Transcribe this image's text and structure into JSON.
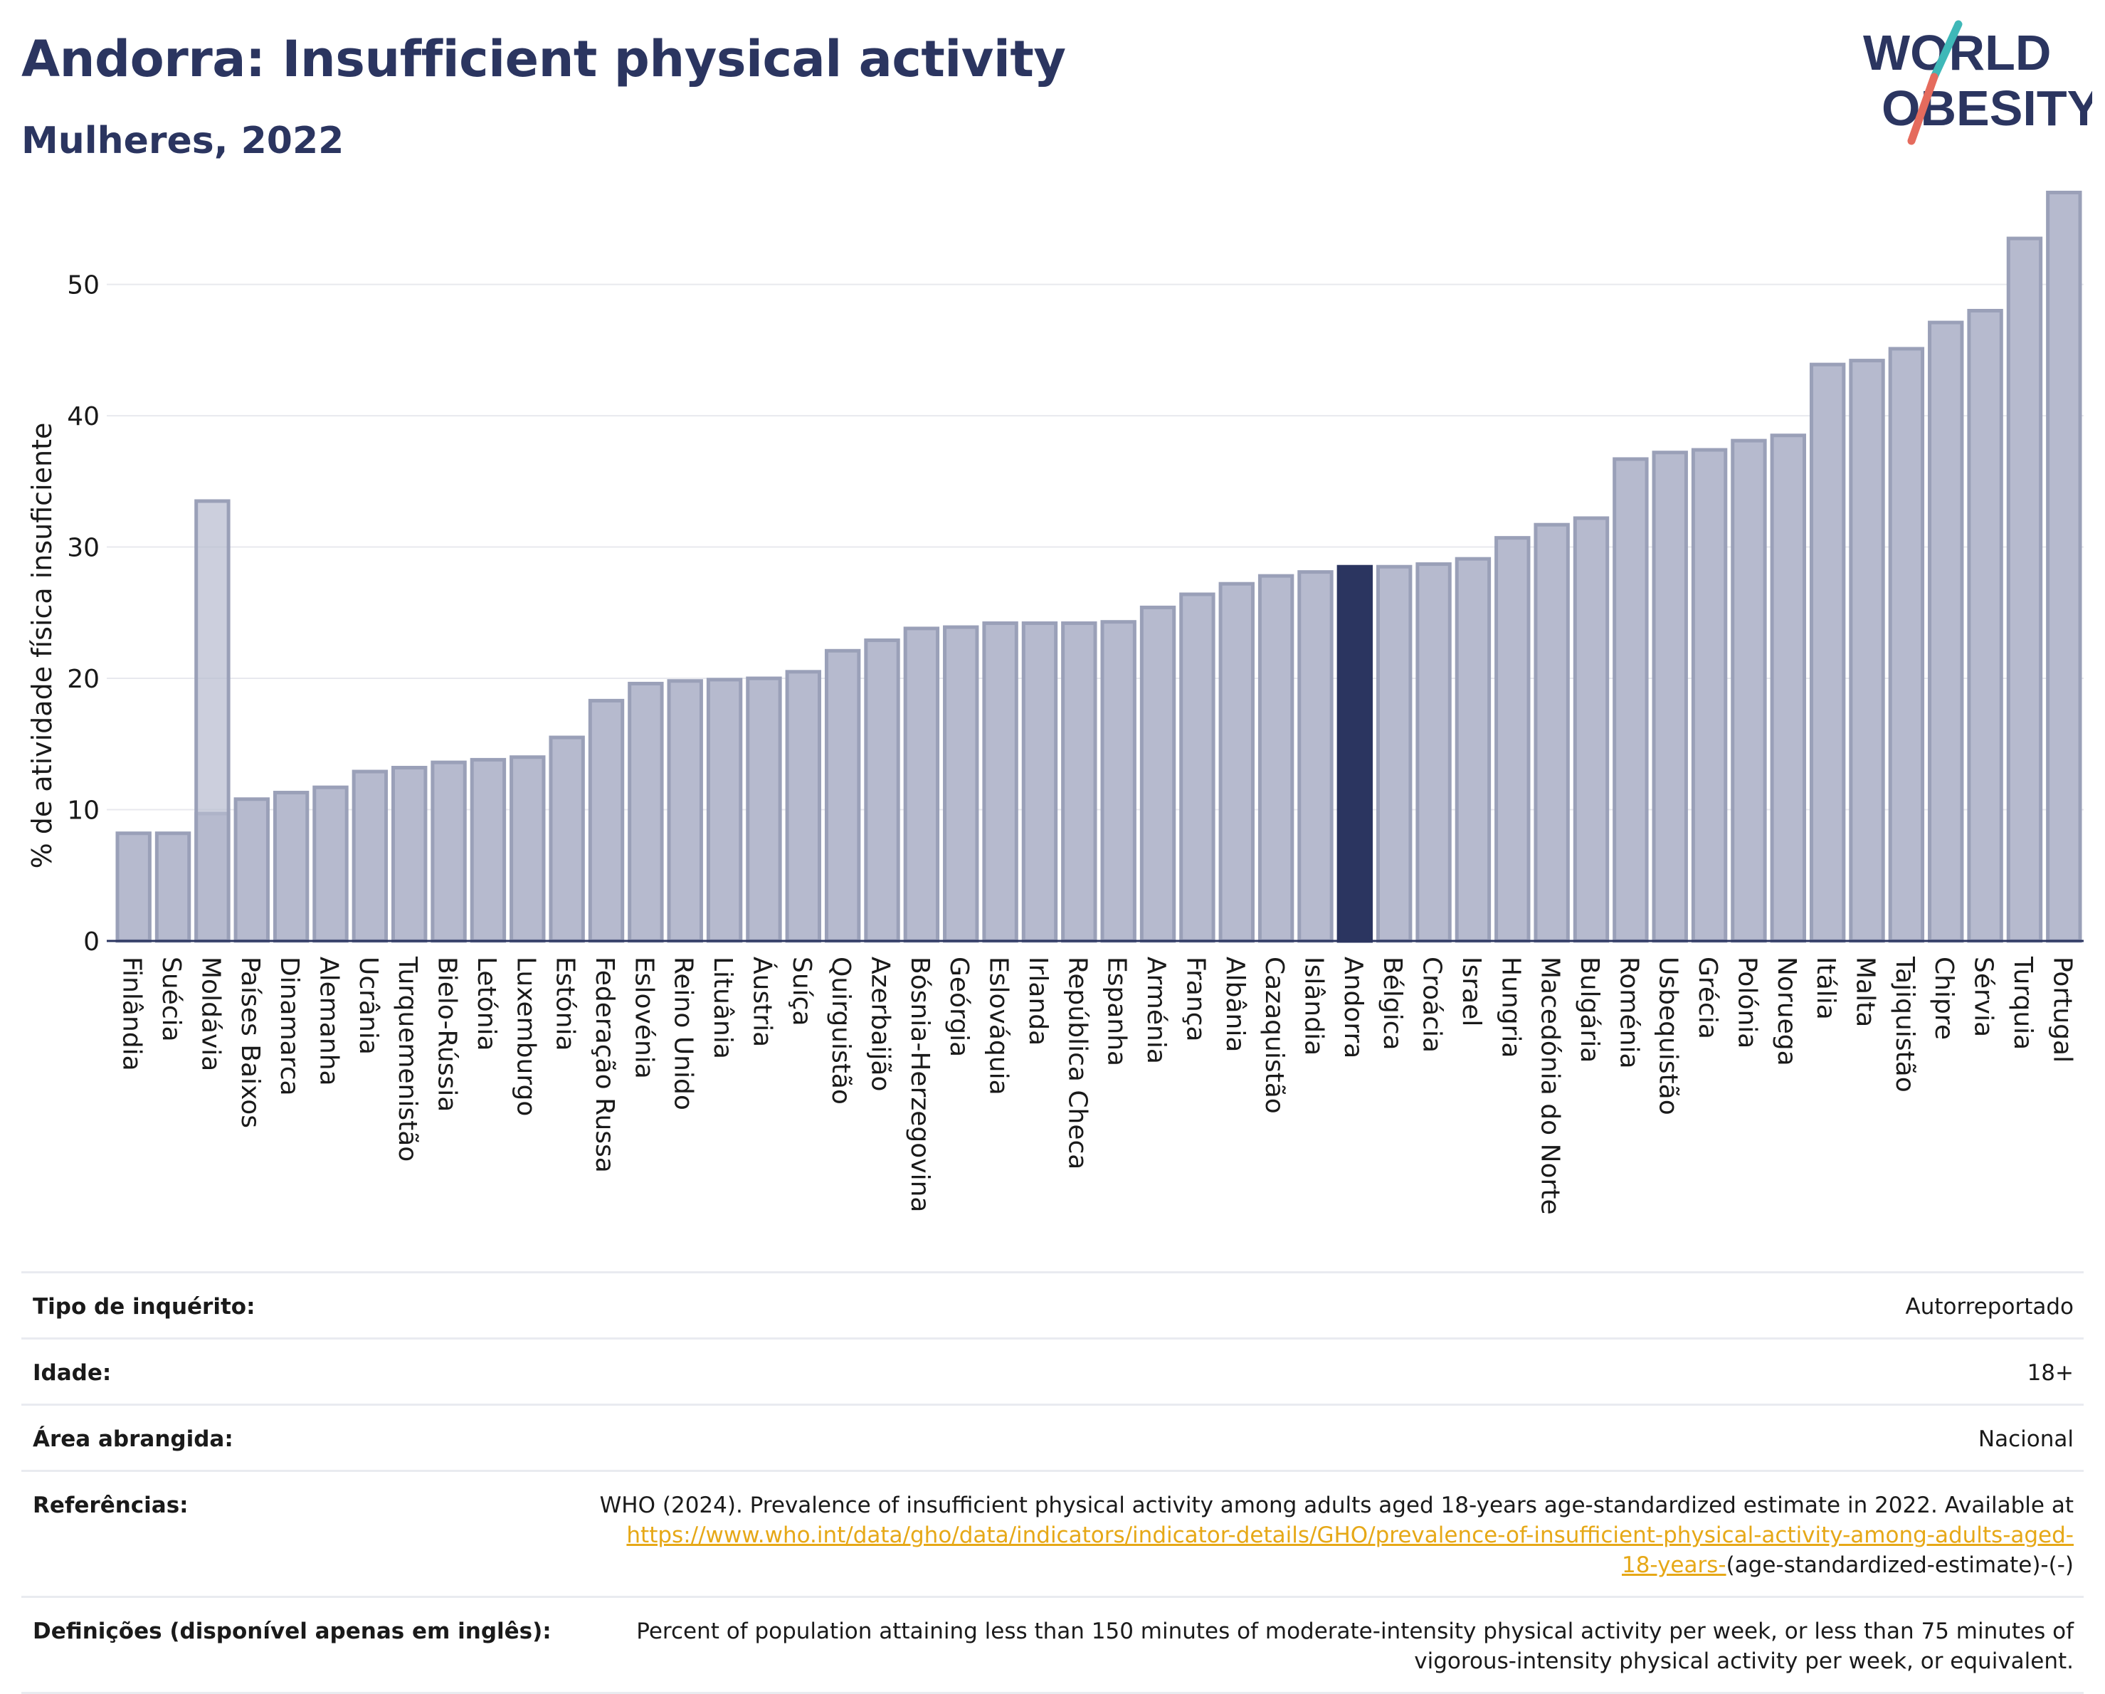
{
  "header": {
    "title": "Andorra: Insufficient physical activity",
    "subtitle": "Mulheres, 2022",
    "logo_line1": "WORLD",
    "logo_line2": "OBESITY"
  },
  "colors": {
    "bar": "#b6bace",
    "bar_border": "#9aa0b8",
    "highlight": "#2b3560",
    "text": "#2b3560",
    "accent_teal": "#3fb8b8",
    "accent_red": "#e56b5d",
    "link": "#e6a817"
  },
  "chart_data": {
    "type": "bar",
    "ylabel": "% de atividade física insuficiente",
    "xlabel": "",
    "ylim": [
      0,
      58
    ],
    "yticks": [
      0,
      10,
      20,
      30,
      40,
      50
    ],
    "grid": true,
    "highlight_category": "Andorra",
    "categories": [
      "Finlândia",
      "Suécia",
      "Moldávia",
      "Países Baixos",
      "Dinamarca",
      "Alemanha",
      "Ucrânia",
      "Turquemenistão",
      "Bielo-Rússia",
      "Letónia",
      "Luxemburgo",
      "Estónia",
      "Federação Russa",
      "Eslovénia",
      "Reino Unido",
      "Lituânia",
      "Áustria",
      "Suíça",
      "Quirguistão",
      "Azerbaijão",
      "Bósnia-Herzegovina",
      "Geórgia",
      "Eslováquia",
      "Irlanda",
      "República Checa",
      "Espanha",
      "Arménia",
      "França",
      "Albânia",
      "Cazaquistão",
      "Islândia",
      "Andorra",
      "Bélgica",
      "Croácia",
      "Israel",
      "Hungria",
      "Macedónia do Norte",
      "Bulgária",
      "Roménia",
      "Usbequistão",
      "Grécia",
      "Polónia",
      "Noruega",
      "Itália",
      "Malta",
      "Tajiquistão",
      "Chipre",
      "Sérvia",
      "Turquia",
      "Portugal"
    ],
    "values": [
      8.2,
      8.2,
      9.7,
      10.8,
      11.3,
      11.7,
      12.9,
      13.2,
      13.6,
      13.8,
      14.0,
      15.5,
      18.3,
      19.6,
      19.8,
      19.9,
      20.0,
      20.5,
      22.1,
      22.9,
      23.8,
      23.9,
      24.2,
      24.2,
      24.2,
      24.3,
      25.4,
      26.4,
      27.2,
      27.8,
      28.1,
      28.5,
      28.5,
      28.7,
      29.1,
      30.7,
      31.7,
      32.2,
      36.7,
      37.2,
      37.4,
      38.1,
      38.5,
      43.9,
      44.2,
      45.1,
      47.1,
      48.0,
      53.5,
      57.0
    ],
    "extra_bars": [
      {
        "category": "Moldávia",
        "value": 33.5
      }
    ]
  },
  "info": {
    "rows": [
      {
        "label": "Tipo de inquérito:",
        "value": "Autorreportado"
      },
      {
        "label": "Idade:",
        "value": "18+"
      },
      {
        "label": "Área abrangida:",
        "value": "Nacional"
      }
    ],
    "references": {
      "label": "Referências:",
      "text": "WHO (2024). Prevalence of insufficient physical activity among adults aged 18-years age-standardized estimate in 2022. Available at",
      "link": "https://www.who.int/data/gho/data/indicators/indicator-details/GHO/prevalence-of-insufficient-physical-activity-among-adults-aged-18-years-",
      "suffix": "(age-standardized-estimate)-(-)"
    },
    "definitions": {
      "label": "Definições (disponível apenas em inglês):",
      "value": "Percent of population attaining less than 150 minutes of moderate-intensity physical activity per week, or less than 75 minutes of vigorous-intensity physical activity per week, or equivalent."
    }
  }
}
